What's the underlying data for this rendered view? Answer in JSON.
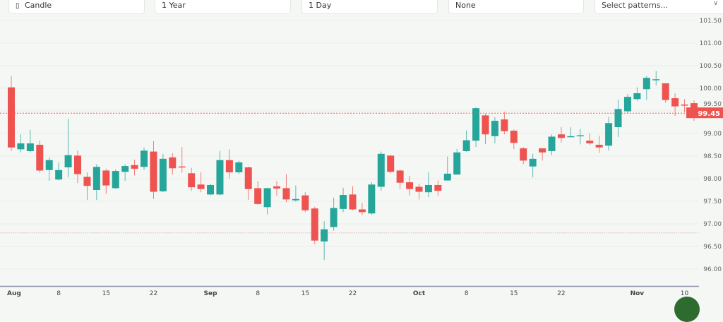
{
  "toolbar": {
    "chart_type": {
      "label": "Candle",
      "icon": "candle-icon"
    },
    "range": {
      "label": "1 Year"
    },
    "interval": {
      "label": "1 Day"
    },
    "indicator": {
      "label": "None"
    },
    "patterns": {
      "placeholder": "Select patterns...",
      "icon": "chevron-down-icon"
    }
  },
  "chart_data": {
    "type": "candlestick",
    "colors": {
      "up": "#26a69a",
      "down": "#ef5350",
      "last_price": "#ef5350"
    },
    "last_price": "99.45",
    "ylim": [
      95.75,
      101.6
    ],
    "y_ticks": [
      "101.50",
      "101.00",
      "100.50",
      "100.00",
      "99.50",
      "99.00",
      "98.50",
      "98.00",
      "97.50",
      "97.00",
      "96.50",
      "96.00"
    ],
    "x_ticks": [
      {
        "index": 0,
        "label": "Aug",
        "bold": true
      },
      {
        "index": 5,
        "label": "8"
      },
      {
        "index": 10,
        "label": "15"
      },
      {
        "index": 15,
        "label": "22"
      },
      {
        "index": 21,
        "label": "Sep",
        "bold": true
      },
      {
        "index": 26,
        "label": "8"
      },
      {
        "index": 31,
        "label": "15"
      },
      {
        "index": 36,
        "label": "22"
      },
      {
        "index": 43,
        "label": "Oct",
        "bold": true
      },
      {
        "index": 48,
        "label": "8"
      },
      {
        "index": 53,
        "label": "15"
      },
      {
        "index": 58,
        "label": "22"
      },
      {
        "index": 66,
        "label": "Nov",
        "bold": true
      },
      {
        "index": 71,
        "label": "10"
      }
    ],
    "reference_line": 96.8,
    "candles": [
      [
        100.02,
        100.27,
        98.61,
        98.69
      ],
      [
        98.65,
        98.98,
        98.58,
        98.78
      ],
      [
        98.61,
        99.08,
        98.58,
        98.78
      ],
      [
        98.75,
        98.84,
        98.13,
        98.18
      ],
      [
        98.19,
        98.47,
        97.95,
        98.41
      ],
      [
        97.98,
        98.36,
        97.96,
        98.19
      ],
      [
        98.25,
        99.32,
        98.03,
        98.52
      ],
      [
        98.51,
        98.62,
        97.9,
        98.1
      ],
      [
        98.04,
        98.14,
        97.53,
        97.84
      ],
      [
        97.75,
        98.32,
        97.53,
        98.26
      ],
      [
        98.18,
        98.22,
        97.66,
        97.85
      ],
      [
        97.79,
        98.2,
        97.77,
        98.17
      ],
      [
        98.15,
        98.32,
        97.95,
        98.28
      ],
      [
        98.3,
        98.42,
        98.07,
        98.22
      ],
      [
        98.26,
        98.69,
        98.19,
        98.62
      ],
      [
        98.6,
        98.83,
        97.55,
        97.71
      ],
      [
        97.72,
        98.55,
        97.7,
        98.44
      ],
      [
        98.47,
        98.56,
        98.09,
        98.23
      ],
      [
        98.27,
        98.7,
        98.13,
        98.25
      ],
      [
        98.12,
        98.24,
        97.73,
        97.81
      ],
      [
        97.87,
        98.14,
        97.7,
        97.77
      ],
      [
        97.65,
        97.89,
        97.63,
        97.86
      ],
      [
        97.65,
        98.61,
        97.63,
        98.41
      ],
      [
        98.41,
        98.65,
        98.01,
        98.14
      ],
      [
        98.14,
        98.4,
        98.1,
        98.36
      ],
      [
        98.25,
        98.27,
        97.53,
        97.77
      ],
      [
        97.79,
        97.95,
        97.42,
        97.44
      ],
      [
        97.37,
        97.8,
        97.21,
        97.79
      ],
      [
        97.83,
        97.95,
        97.62,
        97.78
      ],
      [
        97.79,
        98.1,
        97.48,
        97.54
      ],
      [
        97.52,
        97.85,
        97.49,
        97.55
      ],
      [
        97.63,
        97.7,
        97.26,
        97.3
      ],
      [
        97.34,
        97.38,
        96.55,
        96.63
      ],
      [
        96.61,
        97.06,
        96.2,
        96.88
      ],
      [
        96.93,
        97.58,
        96.85,
        97.35
      ],
      [
        97.33,
        97.8,
        97.26,
        97.64
      ],
      [
        97.65,
        97.83,
        97.3,
        97.32
      ],
      [
        97.32,
        97.46,
        97.2,
        97.26
      ],
      [
        97.23,
        97.92,
        97.2,
        97.87
      ],
      [
        97.82,
        98.6,
        97.73,
        98.55
      ],
      [
        98.51,
        98.53,
        98.13,
        98.15
      ],
      [
        98.18,
        98.2,
        97.77,
        97.91
      ],
      [
        97.92,
        98.06,
        97.63,
        97.77
      ],
      [
        97.82,
        97.89,
        97.54,
        97.71
      ],
      [
        97.7,
        98.14,
        97.59,
        97.86
      ],
      [
        97.86,
        97.96,
        97.62,
        97.73
      ],
      [
        97.96,
        98.49,
        97.96,
        98.11
      ],
      [
        98.09,
        98.66,
        98.09,
        98.58
      ],
      [
        98.61,
        99.07,
        98.59,
        98.85
      ],
      [
        98.84,
        99.58,
        98.7,
        99.56
      ],
      [
        99.4,
        99.44,
        98.77,
        98.98
      ],
      [
        98.94,
        99.36,
        98.78,
        99.28
      ],
      [
        99.31,
        99.48,
        98.98,
        99.05
      ],
      [
        99.06,
        99.09,
        98.65,
        98.79
      ],
      [
        98.67,
        98.7,
        98.32,
        98.4
      ],
      [
        98.27,
        98.55,
        98.03,
        98.44
      ],
      [
        98.67,
        98.67,
        98.4,
        98.58
      ],
      [
        98.61,
        98.98,
        98.52,
        98.93
      ],
      [
        98.98,
        99.14,
        98.8,
        98.9
      ],
      [
        98.92,
        99.14,
        98.92,
        98.94
      ],
      [
        98.94,
        99.1,
        98.76,
        98.96
      ],
      [
        98.84,
        99.0,
        98.75,
        98.78
      ],
      [
        98.75,
        98.95,
        98.57,
        98.69
      ],
      [
        98.73,
        99.37,
        98.62,
        99.23
      ],
      [
        99.14,
        99.75,
        98.92,
        99.54
      ],
      [
        99.49,
        99.87,
        99.44,
        99.81
      ],
      [
        99.76,
        100.02,
        99.72,
        99.89
      ],
      [
        99.98,
        100.27,
        99.74,
        100.23
      ],
      [
        100.19,
        100.38,
        100.06,
        100.2
      ],
      [
        100.11,
        100.11,
        99.68,
        99.74
      ],
      [
        99.78,
        99.89,
        99.39,
        99.6
      ],
      [
        99.64,
        99.76,
        99.47,
        99.63
      ],
      [
        99.67,
        99.73,
        99.28,
        99.45
      ]
    ]
  }
}
